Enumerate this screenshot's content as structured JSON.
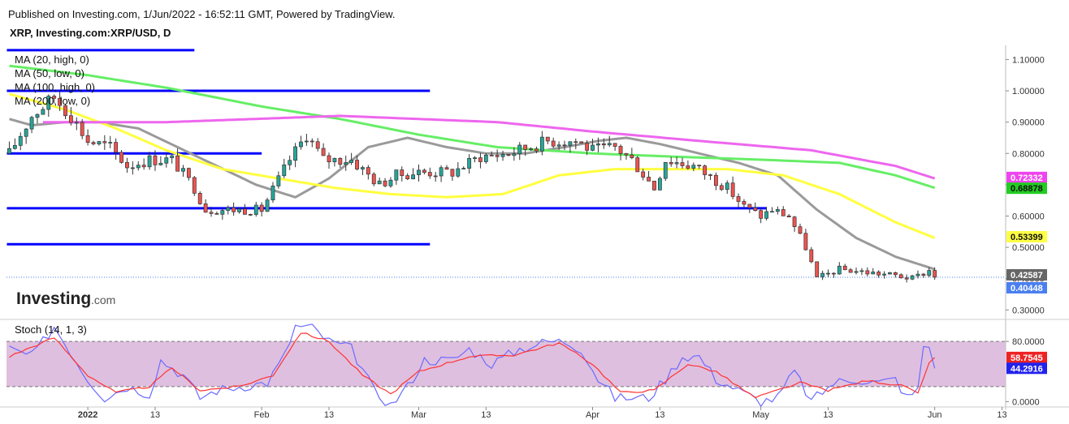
{
  "header": {
    "published": "Published on Investing.com, 1/Jun/2022 - 16:52:11 GMT, Powered by TradingView.",
    "symbol": "XRP, Investing.com:XRP/USD, D"
  },
  "logo": {
    "name": "Investing",
    "suffix": ".com"
  },
  "legend": [
    {
      "label": "MA (20, high, 0)",
      "color": "#9a9a9a"
    },
    {
      "label": "MA (50, low, 0)",
      "color": "#ffff40"
    },
    {
      "label": "MA (100, high, 0)",
      "color": "#66ee66"
    },
    {
      "label": "MA (200, low, 0)",
      "color": "#ee66ee"
    }
  ],
  "stoch_label": "Stoch (14, 1, 3)",
  "colors": {
    "up": "#26a69a",
    "down": "#ef5350",
    "support": "#0000ff",
    "stoch_k": "#6b6bff",
    "stoch_d": "#ff3333",
    "band": "#dcb8dc"
  },
  "chart_data": {
    "type": "candlestick",
    "x_range": [
      "2021-12-18",
      "2022-06-13"
    ],
    "price_ylim": [
      0.28,
      1.14
    ],
    "price_ticks": [
      "1.10000",
      "1.00000",
      "0.90000",
      "0.80000",
      "0.70000",
      "0.60000",
      "0.50000",
      "0.40000",
      "0.30000"
    ],
    "stoch_ylim": [
      -5,
      105
    ],
    "stoch_ticks": [
      "80.0000",
      "0.0000"
    ],
    "date_labels": [
      {
        "date": "2022-01-01",
        "label": "2022",
        "bold": true
      },
      {
        "date": "2022-01-13",
        "label": "13"
      },
      {
        "date": "2022-02-01",
        "label": "Feb"
      },
      {
        "date": "2022-02-13",
        "label": "13"
      },
      {
        "date": "2022-03-01",
        "label": "Mar"
      },
      {
        "date": "2022-03-13",
        "label": "13"
      },
      {
        "date": "2022-04-01",
        "label": "Apr"
      },
      {
        "date": "2022-04-13",
        "label": "13"
      },
      {
        "date": "2022-05-01",
        "label": "May"
      },
      {
        "date": "2022-05-13",
        "label": "13"
      },
      {
        "date": "2022-06-01",
        "label": "Jun"
      },
      {
        "date": "2022-06-13",
        "label": "13"
      }
    ],
    "support_lines": [
      {
        "from": "2021-12-18",
        "to": "2022-01-20",
        "y": 1.13
      },
      {
        "from": "2021-12-18",
        "to": "2022-03-03",
        "y": 1.0
      },
      {
        "from": "2021-12-18",
        "to": "2022-02-01",
        "y": 0.8
      },
      {
        "from": "2021-12-18",
        "to": "2022-05-02",
        "y": 0.625
      },
      {
        "from": "2021-12-18",
        "to": "2022-03-03",
        "y": 0.51
      }
    ],
    "close_anchors": [
      [
        "2021-12-18",
        0.8
      ],
      [
        "2021-12-22",
        0.92
      ],
      [
        "2021-12-26",
        0.98
      ],
      [
        "2021-12-29",
        0.92
      ],
      [
        "2022-01-01",
        0.84
      ],
      [
        "2022-01-05",
        0.82
      ],
      [
        "2022-01-08",
        0.76
      ],
      [
        "2022-01-12",
        0.78
      ],
      [
        "2022-01-16",
        0.78
      ],
      [
        "2022-01-20",
        0.69
      ],
      [
        "2022-01-22",
        0.62
      ],
      [
        "2022-01-28",
        0.62
      ],
      [
        "2022-02-01",
        0.62
      ],
      [
        "2022-02-06",
        0.78
      ],
      [
        "2022-02-09",
        0.86
      ],
      [
        "2022-02-12",
        0.78
      ],
      [
        "2022-02-17",
        0.78
      ],
      [
        "2022-02-22",
        0.7
      ],
      [
        "2022-02-25",
        0.73
      ],
      [
        "2022-03-01",
        0.74
      ],
      [
        "2022-03-07",
        0.74
      ],
      [
        "2022-03-12",
        0.79
      ],
      [
        "2022-03-17",
        0.8
      ],
      [
        "2022-03-24",
        0.84
      ],
      [
        "2022-03-29",
        0.84
      ],
      [
        "2022-04-01",
        0.81
      ],
      [
        "2022-04-05",
        0.82
      ],
      [
        "2022-04-08",
        0.78
      ],
      [
        "2022-04-12",
        0.69
      ],
      [
        "2022-04-14",
        0.78
      ],
      [
        "2022-04-19",
        0.76
      ],
      [
        "2022-04-25",
        0.69
      ],
      [
        "2022-04-28",
        0.63
      ],
      [
        "2022-05-01",
        0.6
      ],
      [
        "2022-05-03",
        0.62
      ],
      [
        "2022-05-06",
        0.6
      ],
      [
        "2022-05-09",
        0.5
      ],
      [
        "2022-05-11",
        0.4
      ],
      [
        "2022-05-15",
        0.43
      ],
      [
        "2022-05-20",
        0.42
      ],
      [
        "2022-05-25",
        0.41
      ],
      [
        "2022-05-28",
        0.4
      ],
      [
        "2022-05-31",
        0.426
      ],
      [
        "2022-06-01",
        0.41
      ]
    ],
    "ma_series": [
      {
        "name": "MA (20, high, 0)",
        "color": "#9a9a9a",
        "points": [
          [
            "2021-12-18",
            0.91
          ],
          [
            "2021-12-22",
            0.89
          ],
          [
            "2021-12-28",
            0.9
          ],
          [
            "2022-01-03",
            0.9
          ],
          [
            "2022-01-10",
            0.88
          ],
          [
            "2022-01-17",
            0.82
          ],
          [
            "2022-01-24",
            0.76
          ],
          [
            "2022-01-31",
            0.7
          ],
          [
            "2022-02-07",
            0.66
          ],
          [
            "2022-02-13",
            0.72
          ],
          [
            "2022-02-20",
            0.82
          ],
          [
            "2022-02-27",
            0.85
          ],
          [
            "2022-03-06",
            0.82
          ],
          [
            "2022-03-13",
            0.8
          ],
          [
            "2022-03-20",
            0.8
          ],
          [
            "2022-03-27",
            0.82
          ],
          [
            "2022-04-02",
            0.84
          ],
          [
            "2022-04-07",
            0.85
          ],
          [
            "2022-04-13",
            0.83
          ],
          [
            "2022-04-20",
            0.8
          ],
          [
            "2022-04-27",
            0.77
          ],
          [
            "2022-05-04",
            0.73
          ],
          [
            "2022-05-11",
            0.62
          ],
          [
            "2022-05-18",
            0.53
          ],
          [
            "2022-05-25",
            0.47
          ],
          [
            "2022-06-01",
            0.43
          ]
        ]
      },
      {
        "name": "MA (50, low, 0)",
        "color": "#ffff40",
        "points": [
          [
            "2021-12-18",
            0.99
          ],
          [
            "2021-12-28",
            0.94
          ],
          [
            "2022-01-06",
            0.88
          ],
          [
            "2022-01-15",
            0.81
          ],
          [
            "2022-01-25",
            0.75
          ],
          [
            "2022-02-04",
            0.72
          ],
          [
            "2022-02-14",
            0.69
          ],
          [
            "2022-02-24",
            0.67
          ],
          [
            "2022-03-06",
            0.66
          ],
          [
            "2022-03-16",
            0.67
          ],
          [
            "2022-03-26",
            0.73
          ],
          [
            "2022-04-05",
            0.75
          ],
          [
            "2022-04-15",
            0.75
          ],
          [
            "2022-04-25",
            0.75
          ],
          [
            "2022-05-05",
            0.73
          ],
          [
            "2022-05-15",
            0.67
          ],
          [
            "2022-05-25",
            0.58
          ],
          [
            "2022-06-01",
            0.53
          ]
        ]
      },
      {
        "name": "MA (100, high, 0)",
        "color": "#66ee66",
        "points": [
          [
            "2021-12-18",
            1.08
          ],
          [
            "2022-01-01",
            1.05
          ],
          [
            "2022-01-15",
            1.01
          ],
          [
            "2022-02-01",
            0.95
          ],
          [
            "2022-02-15",
            0.91
          ],
          [
            "2022-03-01",
            0.86
          ],
          [
            "2022-03-15",
            0.82
          ],
          [
            "2022-04-01",
            0.8
          ],
          [
            "2022-04-15",
            0.79
          ],
          [
            "2022-05-01",
            0.78
          ],
          [
            "2022-05-15",
            0.77
          ],
          [
            "2022-05-25",
            0.73
          ],
          [
            "2022-06-01",
            0.69
          ]
        ]
      },
      {
        "name": "MA (200, low, 0)",
        "color": "#ee66ee",
        "points": [
          [
            "2021-12-24",
            0.9
          ],
          [
            "2022-01-15",
            0.9
          ],
          [
            "2022-02-15",
            0.92
          ],
          [
            "2022-03-15",
            0.9
          ],
          [
            "2022-04-01",
            0.87
          ],
          [
            "2022-04-20",
            0.84
          ],
          [
            "2022-05-10",
            0.81
          ],
          [
            "2022-05-25",
            0.76
          ],
          [
            "2022-06-01",
            0.72
          ]
        ]
      }
    ],
    "stoch_k_anchors": [
      [
        "2021-12-18",
        70
      ],
      [
        "2021-12-22",
        60
      ],
      [
        "2021-12-26",
        100
      ],
      [
        "2021-12-29",
        65
      ],
      [
        "2022-01-01",
        30
      ],
      [
        "2022-01-04",
        5
      ],
      [
        "2022-01-08",
        20
      ],
      [
        "2022-01-12",
        10
      ],
      [
        "2022-01-14",
        55
      ],
      [
        "2022-01-18",
        35
      ],
      [
        "2022-01-21",
        5
      ],
      [
        "2022-01-24",
        15
      ],
      [
        "2022-01-28",
        20
      ],
      [
        "2022-02-02",
        25
      ],
      [
        "2022-02-05",
        60
      ],
      [
        "2022-02-07",
        100
      ],
      [
        "2022-02-10",
        98
      ],
      [
        "2022-02-13",
        80
      ],
      [
        "2022-02-17",
        70
      ],
      [
        "2022-02-21",
        15
      ],
      [
        "2022-02-24",
        -5
      ],
      [
        "2022-02-27",
        20
      ],
      [
        "2022-03-02",
        55
      ],
      [
        "2022-03-07",
        55
      ],
      [
        "2022-03-10",
        70
      ],
      [
        "2022-03-14",
        50
      ],
      [
        "2022-03-19",
        70
      ],
      [
        "2022-03-24",
        80
      ],
      [
        "2022-03-27",
        80
      ],
      [
        "2022-03-30",
        70
      ],
      [
        "2022-04-02",
        30
      ],
      [
        "2022-04-05",
        5
      ],
      [
        "2022-04-08",
        5
      ],
      [
        "2022-04-11",
        5
      ],
      [
        "2022-04-14",
        30
      ],
      [
        "2022-04-17",
        60
      ],
      [
        "2022-04-20",
        60
      ],
      [
        "2022-04-23",
        30
      ],
      [
        "2022-04-27",
        15
      ],
      [
        "2022-05-01",
        0
      ],
      [
        "2022-05-04",
        5
      ],
      [
        "2022-05-07",
        40
      ],
      [
        "2022-05-10",
        0
      ],
      [
        "2022-05-14",
        25
      ],
      [
        "2022-05-18",
        30
      ],
      [
        "2022-05-22",
        25
      ],
      [
        "2022-05-25",
        30
      ],
      [
        "2022-05-27",
        5
      ],
      [
        "2022-05-29",
        15
      ],
      [
        "2022-05-30",
        75
      ],
      [
        "2022-05-31",
        72
      ],
      [
        "2022-06-01",
        44.2916
      ]
    ],
    "stoch_d_anchors": [
      [
        "2021-12-18",
        60
      ],
      [
        "2021-12-26",
        85
      ],
      [
        "2022-01-01",
        35
      ],
      [
        "2022-01-06",
        12
      ],
      [
        "2022-01-12",
        20
      ],
      [
        "2022-01-16",
        45
      ],
      [
        "2022-01-21",
        15
      ],
      [
        "2022-01-28",
        20
      ],
      [
        "2022-02-03",
        35
      ],
      [
        "2022-02-08",
        92
      ],
      [
        "2022-02-13",
        80
      ],
      [
        "2022-02-19",
        35
      ],
      [
        "2022-02-24",
        10
      ],
      [
        "2022-03-01",
        40
      ],
      [
        "2022-03-10",
        60
      ],
      [
        "2022-03-18",
        62
      ],
      [
        "2022-03-26",
        78
      ],
      [
        "2022-04-01",
        50
      ],
      [
        "2022-04-06",
        12
      ],
      [
        "2022-04-12",
        15
      ],
      [
        "2022-04-18",
        50
      ],
      [
        "2022-04-23",
        40
      ],
      [
        "2022-04-30",
        5
      ],
      [
        "2022-05-08",
        25
      ],
      [
        "2022-05-13",
        15
      ],
      [
        "2022-05-20",
        28
      ],
      [
        "2022-05-27",
        20
      ],
      [
        "2022-05-29",
        10
      ],
      [
        "2022-05-31",
        50
      ],
      [
        "2022-06-01",
        58.7545
      ]
    ]
  },
  "price_tags": [
    {
      "value": 0.72332,
      "label": "0.72332",
      "bg": "#ee44ee",
      "fg": "#ffffff"
    },
    {
      "value": 0.68878,
      "label": "0.68878",
      "bg": "#22cc22",
      "fg": "#111111"
    },
    {
      "value": 0.53399,
      "label": "0.53399",
      "bg": "#ffff44",
      "fg": "#111111"
    },
    {
      "value": 0.42587,
      "label": "0.42587",
      "bg": "#666666",
      "fg": "#ffffff"
    },
    {
      "value": 0.40448,
      "label": "0.40448",
      "bg": "#4a7ff0",
      "fg": "#ffffff"
    }
  ],
  "stoch_tags": [
    {
      "value": 58.7545,
      "label": "58.7545",
      "bg": "#ee2222",
      "fg": "#ffffff"
    },
    {
      "value": 44.2916,
      "label": "44.2916",
      "bg": "#2222ee",
      "fg": "#ffffff"
    }
  ]
}
